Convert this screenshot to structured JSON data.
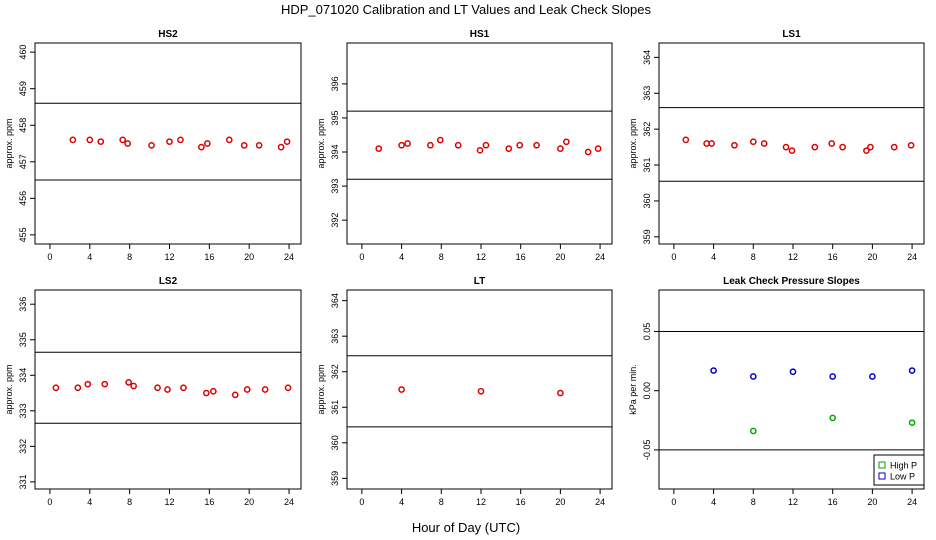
{
  "title": "HDP_071020  Calibration and LT Values and Leak Check Slopes",
  "x_axis_label": "Hour of Day (UTC)",
  "chart_data": [
    {
      "type": "scatter",
      "title": "HS2",
      "ylabel": "approx. ppm",
      "xlim": [
        -1.5,
        25.2
      ],
      "ylim": [
        454.75,
        460.25
      ],
      "xticks": [
        0,
        4,
        8,
        12,
        16,
        20,
        24
      ],
      "yticks": [
        455,
        456,
        457,
        458,
        459,
        460
      ],
      "hlines": [
        456.5,
        458.6
      ],
      "series": [
        {
          "color": "#dd0000",
          "x": [
            2.3,
            4.0,
            5.1,
            7.3,
            7.8,
            10.2,
            12.0,
            13.1,
            15.2,
            15.8,
            18.0,
            19.5,
            21.0,
            23.2,
            23.8
          ],
          "y": [
            457.6,
            457.6,
            457.55,
            457.6,
            457.5,
            457.45,
            457.55,
            457.6,
            457.4,
            457.5,
            457.6,
            457.45,
            457.45,
            457.4,
            457.55
          ]
        }
      ]
    },
    {
      "type": "scatter",
      "title": "HS1",
      "ylabel": "approx. ppm",
      "xlim": [
        -1.5,
        25.2
      ],
      "ylim": [
        391.3,
        397.2
      ],
      "xticks": [
        0,
        4,
        8,
        12,
        16,
        20,
        24
      ],
      "yticks": [
        392,
        393,
        394,
        395,
        396
      ],
      "hlines": [
        393.2,
        395.2
      ],
      "series": [
        {
          "color": "#dd0000",
          "x": [
            1.7,
            4.0,
            4.6,
            6.9,
            7.9,
            9.7,
            11.9,
            12.5,
            14.8,
            15.9,
            17.6,
            20.0,
            20.6,
            22.8,
            23.8
          ],
          "y": [
            394.1,
            394.2,
            394.25,
            394.2,
            394.35,
            394.2,
            394.05,
            394.2,
            394.1,
            394.2,
            394.2,
            394.1,
            394.3,
            394.0,
            394.1
          ]
        }
      ]
    },
    {
      "type": "scatter",
      "title": "LS1",
      "ylabel": "approx. ppm",
      "xlim": [
        -1.5,
        25.2
      ],
      "ylim": [
        358.8,
        364.4
      ],
      "xticks": [
        0,
        4,
        8,
        12,
        16,
        20,
        24
      ],
      "yticks": [
        359,
        360,
        361,
        362,
        363,
        364
      ],
      "hlines": [
        360.55,
        362.6
      ],
      "series": [
        {
          "color": "#dd0000",
          "x": [
            1.2,
            3.3,
            3.8,
            6.1,
            8.0,
            9.1,
            11.3,
            11.9,
            14.2,
            15.9,
            17.0,
            19.4,
            19.8,
            22.2,
            23.9
          ],
          "y": [
            361.7,
            361.6,
            361.6,
            361.55,
            361.65,
            361.6,
            361.5,
            361.4,
            361.5,
            361.6,
            361.5,
            361.4,
            361.5,
            361.5,
            361.55
          ]
        }
      ]
    },
    {
      "type": "scatter",
      "title": "LS2",
      "ylabel": "approx. ppm",
      "xlim": [
        -1.5,
        25.2
      ],
      "ylim": [
        330.8,
        336.4
      ],
      "xticks": [
        0,
        4,
        8,
        12,
        16,
        20,
        24
      ],
      "yticks": [
        331,
        332,
        333,
        334,
        335,
        336
      ],
      "hlines": [
        332.65,
        334.65
      ],
      "series": [
        {
          "color": "#dd0000",
          "x": [
            0.6,
            2.8,
            3.8,
            5.5,
            7.9,
            8.4,
            10.8,
            11.8,
            13.4,
            15.7,
            16.4,
            18.6,
            19.8,
            21.6,
            23.9
          ],
          "y": [
            333.65,
            333.65,
            333.75,
            333.75,
            333.8,
            333.7,
            333.65,
            333.6,
            333.65,
            333.5,
            333.55,
            333.45,
            333.6,
            333.6,
            333.65
          ]
        }
      ]
    },
    {
      "type": "scatter",
      "title": "LT",
      "ylabel": "approx. ppm",
      "xlim": [
        -1.5,
        25.2
      ],
      "ylim": [
        358.7,
        364.3
      ],
      "xticks": [
        0,
        4,
        8,
        12,
        16,
        20,
        24
      ],
      "yticks": [
        359,
        360,
        361,
        362,
        363,
        364
      ],
      "hlines": [
        360.45,
        362.45
      ],
      "series": [
        {
          "color": "#dd0000",
          "x": [
            4.0,
            12.0,
            20.0
          ],
          "y": [
            361.5,
            361.45,
            361.4
          ]
        }
      ]
    },
    {
      "type": "scatter",
      "title": "Leak Check Pressure Slopes",
      "ylabel": "kPa per min.",
      "xlim": [
        -1.5,
        25.2
      ],
      "ylim": [
        -0.083,
        0.085
      ],
      "xticks": [
        0,
        4,
        8,
        12,
        16,
        20,
        24
      ],
      "yticks": [
        -0.05,
        0.0,
        0.05
      ],
      "ytick_labels": [
        "-0.05",
        "0.00",
        "0.05"
      ],
      "hlines": [
        -0.05,
        0.05
      ],
      "legend": "bottom-right",
      "series": [
        {
          "name": "High P",
          "color": "#00aa00",
          "x": [
            8,
            16,
            24
          ],
          "y": [
            -0.034,
            -0.023,
            -0.027
          ]
        },
        {
          "name": "Low P",
          "color": "#0000cc",
          "x": [
            4,
            8,
            12,
            16,
            20,
            24
          ],
          "y": [
            0.017,
            0.012,
            0.016,
            0.012,
            0.012,
            0.017
          ]
        }
      ]
    }
  ]
}
